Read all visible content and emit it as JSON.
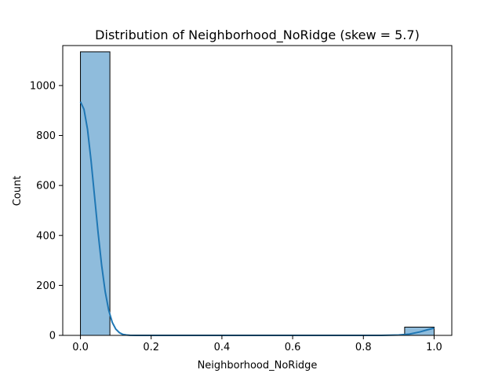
{
  "chart_data": {
    "type": "bar",
    "title": "Distribution of Neighborhood_NoRidge (skew = 5.7)",
    "xlabel": "Neighborhood_NoRidge",
    "ylabel": "Count",
    "xlim": [
      -0.05,
      1.05
    ],
    "ylim": [
      0,
      1160
    ],
    "xticks": [
      0.0,
      0.2,
      0.4,
      0.6,
      0.8,
      1.0
    ],
    "xtick_labels": [
      "0.0",
      "0.2",
      "0.4",
      "0.6",
      "0.8",
      "1.0"
    ],
    "yticks": [
      0,
      200,
      400,
      600,
      800,
      1000
    ],
    "ytick_labels": [
      "0",
      "200",
      "400",
      "600",
      "800",
      "1000"
    ],
    "bins": [
      {
        "x0": 0.0,
        "x1": 0.0833,
        "count": 1135
      },
      {
        "x0": 0.9167,
        "x1": 1.0,
        "count": 33
      }
    ],
    "kde": {
      "x": [
        0.0,
        0.01,
        0.02,
        0.03,
        0.04,
        0.05,
        0.06,
        0.07,
        0.08,
        0.09,
        0.1,
        0.11,
        0.12,
        0.13,
        0.14,
        0.16,
        0.2,
        0.3,
        0.5,
        0.7,
        0.8,
        0.85,
        0.9,
        0.93,
        0.96,
        0.98,
        1.0
      ],
      "y": [
        935,
        905,
        825,
        700,
        555,
        410,
        280,
        175,
        100,
        52,
        25,
        11,
        4,
        1.5,
        0.5,
        0,
        0,
        0,
        0,
        0,
        0,
        0.2,
        1.5,
        5,
        14,
        22,
        29
      ]
    },
    "bar_color": "#8fbcdc",
    "bar_edge": "#000000",
    "kde_color": "#1f77b4",
    "grid": false,
    "legend": "none"
  }
}
